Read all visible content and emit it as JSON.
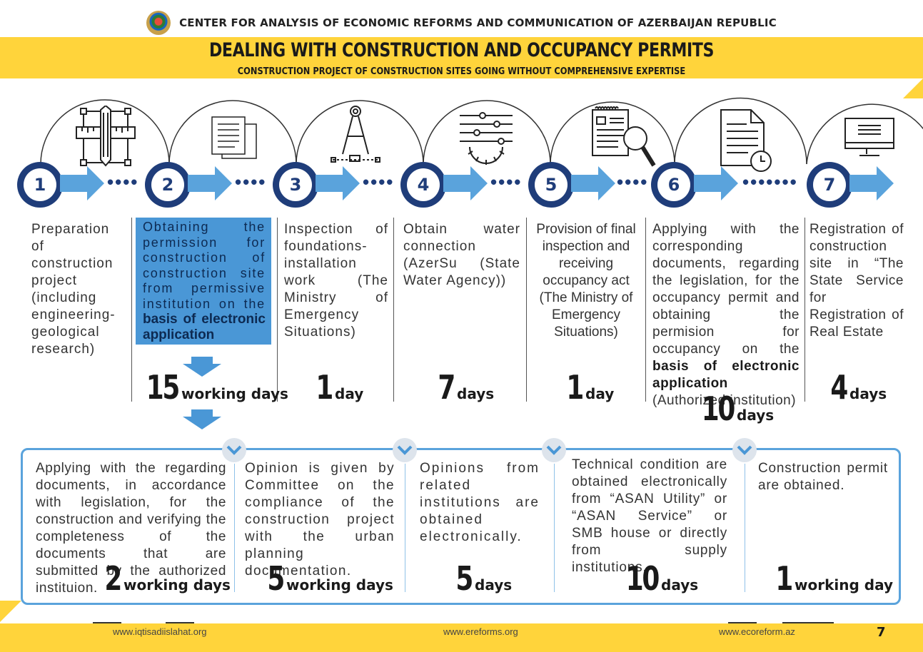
{
  "header": {
    "org_name": "CENTER FOR ANALYSIS OF ECONOMIC REFORMS AND COMMUNICATION OF AZERBAIJAN REPUBLIC",
    "emblem_icon": "azerbaijan-emblem-icon"
  },
  "title": {
    "main": "DEALING WITH CONSTRUCTION AND OCCUPANCY PERMITS",
    "sub": "CONSTRUCTION PROJECT OF CONSTRUCTION SITES GOING WITHOUT COMPREHENSIVE EXPERTISE"
  },
  "colors": {
    "accent_yellow": "#ffd43b",
    "navy": "#1f3d7a",
    "arrow_blue": "#5aa3dc",
    "highlight_blue": "#4a97d6"
  },
  "steps": [
    {
      "number": "1",
      "icon": "engineering-drawing-icon",
      "desc": "Preparation of construction project (including engineering-geological research)",
      "duration_num": "",
      "duration_unit": ""
    },
    {
      "number": "2",
      "icon": "documents-icon",
      "desc_plain": "Obtaining the permission for construction of construction site from permissive institution on the",
      "desc_bold": "basis of electronic application",
      "duration_num": "15",
      "duration_unit": "working days"
    },
    {
      "number": "3",
      "icon": "compass-icon",
      "desc": "Inspection of foundations-installation work (The Ministry of Emergency Situations)",
      "duration_num": "1",
      "duration_unit": "day"
    },
    {
      "number": "4",
      "icon": "settings-sliders-icon",
      "desc": "Obtain water connection (AzerSu (State Water Agency))",
      "duration_num": "7",
      "duration_unit": "days"
    },
    {
      "number": "5",
      "icon": "document-magnifier-icon",
      "desc": "Provision of final inspection and receiving occupancy act (The Ministry of Emergency Situations)",
      "duration_num": "1",
      "duration_unit": "day"
    },
    {
      "number": "6",
      "icon": "document-clock-icon",
      "desc_plain": "Applying with the corresponding documents, regarding the legislation, for the occupancy permit and obtaining the permision for occupancy on the",
      "desc_bold": "basis of electronic application",
      "desc_tail": "(Authorized institution)",
      "duration_num": "10",
      "duration_unit": "days"
    },
    {
      "number": "7",
      "icon": "monitor-icon",
      "desc": "Registration of construction site in “The State Service for Registration of Real Estate",
      "duration_num": "4",
      "duration_unit": "days"
    }
  ],
  "substeps": [
    {
      "desc": "Applying with the regarding documents, in accordance with legislation, for the construction and verifying the completeness of the documents that are submitted by the authorized instituion.",
      "duration_num": "2",
      "duration_unit": "working days"
    },
    {
      "desc": "Opinion is given by Committee on the compliance of the construction project with the urban planning documentation.",
      "duration_num": "5",
      "duration_unit": "working days"
    },
    {
      "desc": "Opinions from related institutions are obtained electronically.",
      "duration_num": "5",
      "duration_unit": "days"
    },
    {
      "desc": "Technical condition are obtained electronically from “ASAN Utility” or “ASAN Service” or SMB house or directly from supply institutions.",
      "duration_num": "10",
      "duration_unit": "days"
    },
    {
      "desc": "Construction permit are obtained.",
      "duration_num": "1",
      "duration_unit": "working day"
    }
  ],
  "footer": {
    "link1": "www.iqtisadiislahat.org",
    "link2": "www.ereforms.org",
    "link3": "www.ecoreform.az",
    "page": "7"
  }
}
